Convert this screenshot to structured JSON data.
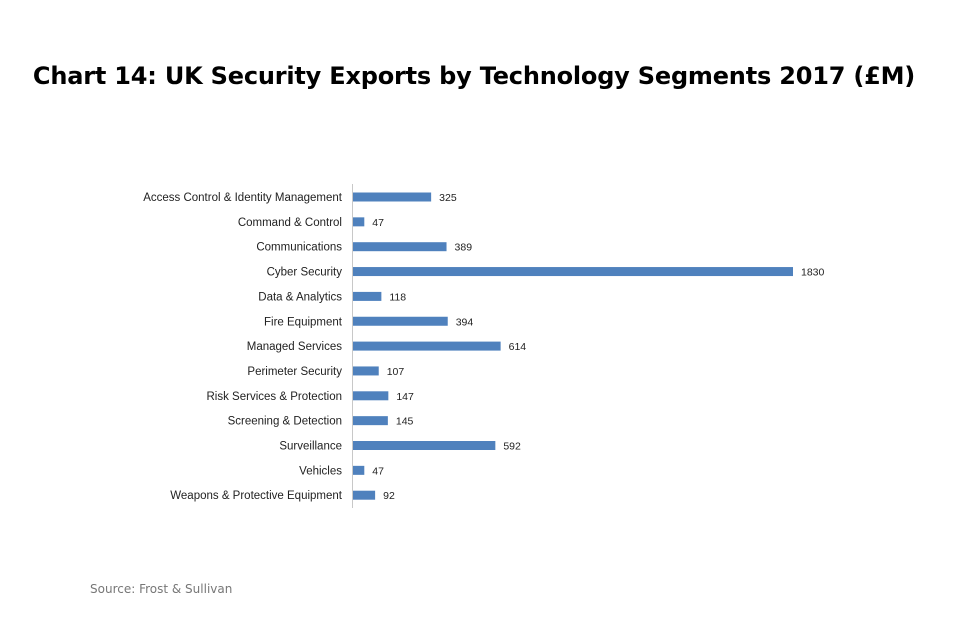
{
  "chart_data": {
    "type": "bar",
    "orientation": "horizontal",
    "title": "Chart 14: UK Security Exports by Technology Segments 2017 (£M)",
    "categories": [
      "Access Control & Identity Management",
      "Command & Control",
      "Communications",
      "Cyber Security",
      "Data & Analytics",
      "Fire Equipment",
      "Managed Services",
      "Perimeter Security",
      "Risk Services & Protection",
      "Screening & Detection",
      "Surveillance",
      "Vehicles",
      "Weapons & Protective Equipment"
    ],
    "values": [
      325,
      47,
      389,
      1830,
      118,
      394,
      614,
      107,
      147,
      145,
      592,
      47,
      92
    ],
    "xlabel": "",
    "ylabel": "",
    "xlim": [
      0,
      1830
    ],
    "grid": false,
    "legend": "none",
    "bar_color": "#4F81BD"
  },
  "source": "Source: Frost & Sullivan"
}
